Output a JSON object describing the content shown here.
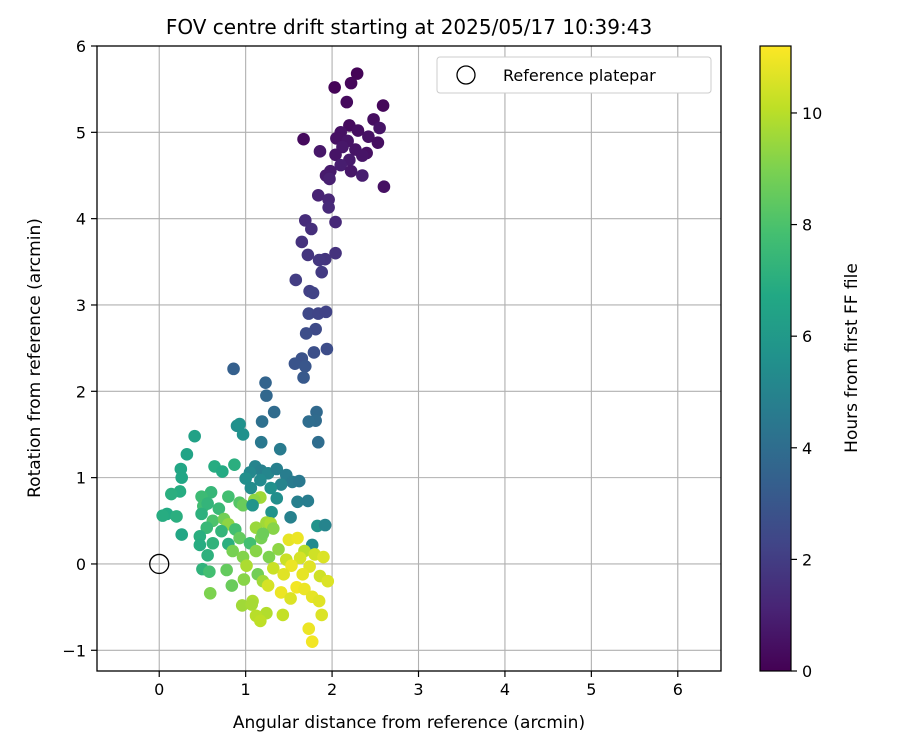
{
  "chart_data": {
    "type": "scatter",
    "title": "FOV centre drift starting at 2025/05/17 10:39:43",
    "xlabel": "Angular distance from reference (arcmin)",
    "ylabel": "Rotation from reference (arcmin)",
    "xlim": [
      -0.72,
      6.5
    ],
    "ylim": [
      -1.24,
      6.0
    ],
    "xticks": [
      0,
      1,
      2,
      3,
      4,
      5,
      6
    ],
    "yticks": [
      -1,
      0,
      1,
      2,
      3,
      4,
      5,
      6
    ],
    "grid": true,
    "legend": {
      "position": "top-right",
      "entries": [
        "Reference platepar"
      ]
    },
    "reference_point": {
      "x": 0,
      "y": 0,
      "marker": "open-circle"
    },
    "colorbar": {
      "label": "Hours from first FF file",
      "colormap": "viridis",
      "range": [
        0,
        11.2
      ],
      "ticks": [
        0,
        2,
        4,
        6,
        8,
        10
      ]
    },
    "series": [
      {
        "color_by": "hours",
        "x": [],
        "y": [],
        "hours": []
      }
    ],
    "points": [
      [
        2.29,
        5.68,
        0.1
      ],
      [
        2.22,
        5.57,
        0.2
      ],
      [
        2.03,
        5.52,
        0.1
      ],
      [
        2.17,
        5.35,
        0.3
      ],
      [
        2.59,
        5.31,
        0.2
      ],
      [
        2.48,
        5.15,
        0.4
      ],
      [
        2.2,
        5.08,
        0.3
      ],
      [
        2.1,
        5.0,
        0.5
      ],
      [
        2.3,
        5.02,
        0.4
      ],
      [
        2.55,
        5.05,
        0.6
      ],
      [
        1.67,
        4.92,
        0.3
      ],
      [
        2.05,
        4.93,
        0.5
      ],
      [
        2.18,
        4.9,
        0.6
      ],
      [
        2.42,
        4.95,
        0.5
      ],
      [
        2.53,
        4.88,
        0.4
      ],
      [
        2.12,
        4.83,
        0.7
      ],
      [
        2.27,
        4.8,
        0.6
      ],
      [
        2.4,
        4.76,
        0.5
      ],
      [
        1.86,
        4.78,
        0.7
      ],
      [
        2.04,
        4.74,
        0.6
      ],
      [
        2.2,
        4.68,
        0.8
      ],
      [
        2.35,
        4.73,
        0.6
      ],
      [
        2.1,
        4.62,
        0.9
      ],
      [
        1.98,
        4.55,
        0.8
      ],
      [
        2.22,
        4.55,
        0.7
      ],
      [
        2.35,
        4.5,
        0.9
      ],
      [
        1.93,
        4.5,
        0.8
      ],
      [
        2.6,
        4.37,
        0.5
      ],
      [
        1.97,
        4.46,
        1.0
      ],
      [
        1.84,
        4.27,
        1.1
      ],
      [
        1.96,
        4.22,
        1.2
      ],
      [
        1.96,
        4.13,
        1.3
      ],
      [
        1.69,
        3.98,
        1.4
      ],
      [
        2.04,
        3.96,
        1.3
      ],
      [
        1.76,
        3.88,
        1.5
      ],
      [
        1.65,
        3.73,
        1.6
      ],
      [
        1.72,
        3.58,
        1.7
      ],
      [
        2.04,
        3.6,
        1.6
      ],
      [
        1.92,
        3.53,
        1.7
      ],
      [
        1.85,
        3.52,
        1.8
      ],
      [
        1.88,
        3.38,
        1.9
      ],
      [
        1.58,
        3.29,
        2.0
      ],
      [
        1.74,
        3.16,
        2.1
      ],
      [
        1.78,
        3.14,
        2.2
      ],
      [
        1.73,
        2.9,
        2.4
      ],
      [
        1.84,
        2.9,
        2.3
      ],
      [
        1.93,
        2.92,
        2.2
      ],
      [
        1.81,
        2.72,
        2.5
      ],
      [
        1.7,
        2.67,
        2.6
      ],
      [
        1.79,
        2.45,
        2.7
      ],
      [
        1.94,
        2.49,
        2.6
      ],
      [
        1.65,
        2.38,
        2.8
      ],
      [
        1.57,
        2.32,
        2.9
      ],
      [
        1.69,
        2.29,
        3.0
      ],
      [
        1.67,
        2.16,
        3.1
      ],
      [
        0.86,
        2.26,
        3.4
      ],
      [
        1.23,
        2.1,
        3.6
      ],
      [
        1.24,
        1.95,
        3.7
      ],
      [
        1.33,
        1.76,
        3.9
      ],
      [
        1.82,
        1.76,
        3.8
      ],
      [
        1.81,
        1.66,
        3.9
      ],
      [
        1.73,
        1.65,
        4.0
      ],
      [
        1.19,
        1.65,
        4.1
      ],
      [
        0.9,
        1.6,
        5.5
      ],
      [
        0.93,
        1.62,
        5.6
      ],
      [
        0.97,
        1.5,
        5.6
      ],
      [
        1.84,
        1.41,
        4.0
      ],
      [
        1.18,
        1.41,
        4.5
      ],
      [
        1.4,
        1.33,
        4.6
      ],
      [
        0.41,
        1.48,
        6.4
      ],
      [
        0.32,
        1.27,
        6.5
      ],
      [
        0.64,
        1.13,
        6.9
      ],
      [
        0.87,
        1.15,
        7.0
      ],
      [
        1.11,
        1.13,
        5.0
      ],
      [
        1.18,
        1.08,
        4.9
      ],
      [
        1.26,
        1.05,
        5.1
      ],
      [
        1.05,
        1.06,
        5.2
      ],
      [
        1.36,
        1.1,
        4.8
      ],
      [
        1.47,
        1.03,
        4.7
      ],
      [
        0.25,
        1.1,
        6.6
      ],
      [
        0.26,
        1.0,
        6.6
      ],
      [
        0.73,
        1.07,
        6.8
      ],
      [
        1.0,
        0.99,
        5.5
      ],
      [
        1.17,
        0.97,
        5.3
      ],
      [
        1.54,
        0.95,
        4.6
      ],
      [
        1.62,
        0.96,
        4.5
      ],
      [
        1.41,
        0.92,
        5.0
      ],
      [
        1.06,
        0.88,
        5.4
      ],
      [
        1.29,
        0.88,
        5.6
      ],
      [
        0.24,
        0.84,
        6.9
      ],
      [
        0.14,
        0.81,
        7.0
      ],
      [
        0.6,
        0.83,
        7.4
      ],
      [
        0.49,
        0.78,
        7.6
      ],
      [
        1.17,
        0.77,
        9.6
      ],
      [
        1.1,
        0.74,
        9.3
      ],
      [
        0.8,
        0.78,
        7.8
      ],
      [
        0.93,
        0.71,
        8.2
      ],
      [
        1.36,
        0.76,
        5.5
      ],
      [
        1.6,
        0.72,
        4.8
      ],
      [
        1.72,
        0.73,
        4.7
      ],
      [
        0.51,
        0.67,
        7.7
      ],
      [
        0.56,
        0.7,
        7.3
      ],
      [
        0.69,
        0.64,
        7.5
      ],
      [
        0.97,
        0.68,
        8.6
      ],
      [
        1.08,
        0.68,
        5.8
      ],
      [
        1.3,
        0.6,
        5.7
      ],
      [
        1.52,
        0.54,
        4.9
      ],
      [
        0.09,
        0.58,
        6.8
      ],
      [
        0.04,
        0.56,
        6.9
      ],
      [
        0.2,
        0.55,
        7.0
      ],
      [
        0.49,
        0.58,
        7.1
      ],
      [
        0.62,
        0.5,
        8.0
      ],
      [
        0.75,
        0.52,
        8.8
      ],
      [
        0.8,
        0.46,
        9.3
      ],
      [
        1.24,
        0.48,
        9.6
      ],
      [
        1.29,
        0.47,
        9.8
      ],
      [
        1.12,
        0.42,
        9.5
      ],
      [
        1.32,
        0.41,
        9.2
      ],
      [
        0.55,
        0.42,
        7.5
      ],
      [
        0.72,
        0.38,
        7.3
      ],
      [
        0.88,
        0.4,
        7.8
      ],
      [
        0.26,
        0.34,
        6.6
      ],
      [
        0.47,
        0.32,
        7.0
      ],
      [
        1.18,
        0.3,
        8.9
      ],
      [
        1.2,
        0.35,
        8.7
      ],
      [
        0.93,
        0.3,
        8.5
      ],
      [
        1.5,
        0.28,
        10.8
      ],
      [
        1.6,
        0.3,
        10.9
      ],
      [
        1.05,
        0.24,
        7.8
      ],
      [
        0.8,
        0.23,
        7.0
      ],
      [
        0.47,
        0.22,
        6.9
      ],
      [
        0.62,
        0.24,
        7.2
      ],
      [
        1.83,
        0.44,
        5.7
      ],
      [
        1.92,
        0.45,
        5.0
      ],
      [
        1.77,
        0.22,
        5.3
      ],
      [
        1.38,
        0.17,
        9.3
      ],
      [
        0.85,
        0.15,
        8.9
      ],
      [
        1.12,
        0.15,
        9.2
      ],
      [
        1.68,
        0.15,
        10.0
      ],
      [
        1.8,
        0.11,
        10.4
      ],
      [
        0.56,
        0.1,
        7.1
      ],
      [
        0.97,
        0.08,
        9.1
      ],
      [
        1.27,
        0.08,
        9.0
      ],
      [
        1.47,
        0.05,
        10.3
      ],
      [
        1.63,
        0.07,
        10.5
      ],
      [
        1.9,
        0.08,
        10.6
      ],
      [
        1.74,
        -0.03,
        10.7
      ],
      [
        1.53,
        -0.02,
        10.9
      ],
      [
        1.32,
        -0.05,
        10.3
      ],
      [
        1.01,
        -0.02,
        9.8
      ],
      [
        0.5,
        -0.06,
        7.2
      ],
      [
        0.58,
        -0.09,
        7.8
      ],
      [
        0.78,
        -0.07,
        8.5
      ],
      [
        1.14,
        -0.12,
        8.8
      ],
      [
        1.44,
        -0.12,
        10.7
      ],
      [
        1.66,
        -0.12,
        10.8
      ],
      [
        1.86,
        -0.14,
        10.4
      ],
      [
        0.98,
        -0.18,
        9.2
      ],
      [
        1.2,
        -0.2,
        9.6
      ],
      [
        1.95,
        -0.2,
        10.6
      ],
      [
        0.84,
        -0.25,
        8.6
      ],
      [
        1.26,
        -0.25,
        10.5
      ],
      [
        1.59,
        -0.27,
        11.0
      ],
      [
        1.68,
        -0.29,
        10.9
      ],
      [
        1.41,
        -0.33,
        10.9
      ],
      [
        1.77,
        -0.38,
        10.8
      ],
      [
        1.52,
        -0.4,
        10.6
      ],
      [
        0.59,
        -0.34,
        9.0
      ],
      [
        1.08,
        -0.43,
        9.8
      ],
      [
        1.85,
        -0.43,
        10.7
      ],
      [
        0.96,
        -0.48,
        9.6
      ],
      [
        1.07,
        -0.47,
        9.7
      ],
      [
        1.43,
        -0.59,
        10.2
      ],
      [
        1.88,
        -0.59,
        10.6
      ],
      [
        1.24,
        -0.57,
        9.9
      ],
      [
        1.12,
        -0.6,
        10.0
      ],
      [
        1.17,
        -0.66,
        10.1
      ],
      [
        1.73,
        -0.75,
        10.9
      ],
      [
        1.77,
        -0.9,
        11.0
      ]
    ]
  }
}
